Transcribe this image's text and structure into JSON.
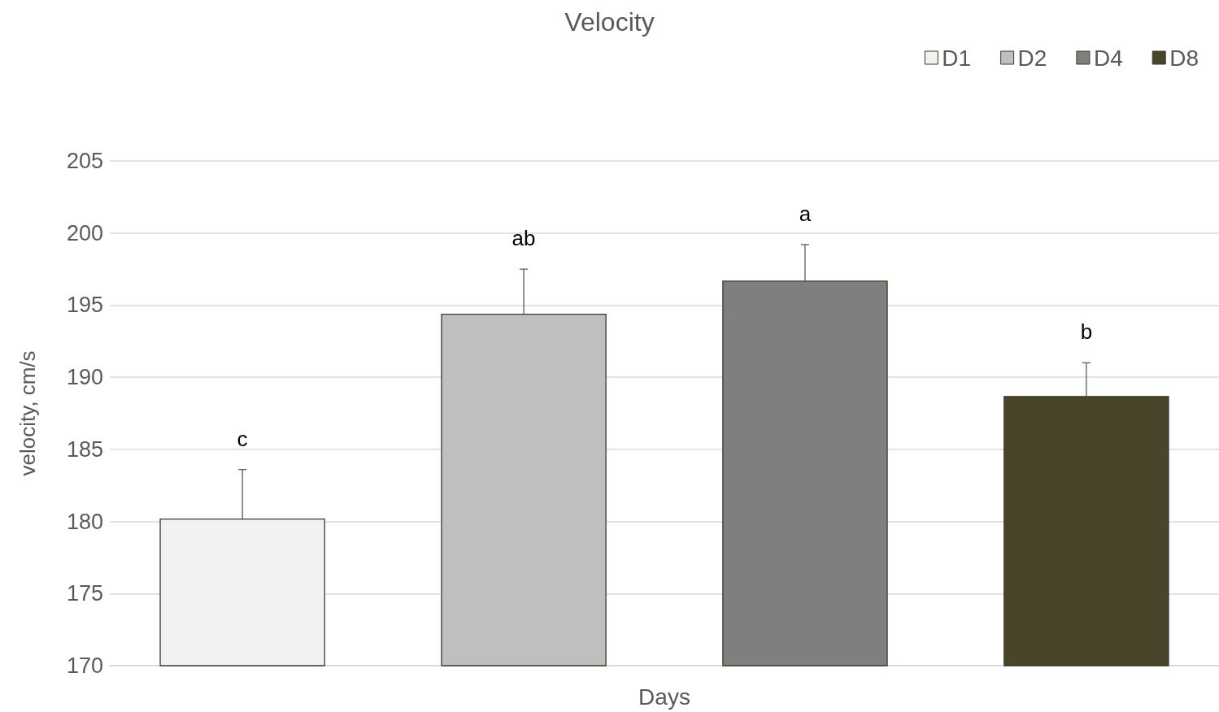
{
  "chart_data": {
    "type": "bar",
    "title": "Velocity",
    "xlabel": "Days",
    "ylabel": "velocity, cm/s",
    "categories": [
      null
    ],
    "series": [
      {
        "name": "D1",
        "color": "#f2f2f2",
        "values": [
          180.2
        ],
        "errors": [
          [
            180.2,
            183.6
          ]
        ]
      },
      {
        "name": "D2",
        "color": "#bfbfbf",
        "values": [
          194.4
        ],
        "errors": [
          [
            194.4,
            197.5
          ]
        ]
      },
      {
        "name": "D4",
        "color": "#7f7f7f",
        "values": [
          196.7
        ],
        "errors": [
          [
            196.7,
            199.2
          ]
        ]
      },
      {
        "name": "D8",
        "color": "#4a452a",
        "values": [
          188.7
        ],
        "errors": [
          [
            188.7,
            191.0
          ]
        ]
      }
    ],
    "annotations": [
      "c",
      "ab",
      "a",
      "b"
    ],
    "ylim": [
      170,
      205
    ],
    "yticks": [
      170,
      175,
      180,
      185,
      190,
      195,
      200,
      205
    ],
    "grid": "y",
    "legend": "top right"
  }
}
